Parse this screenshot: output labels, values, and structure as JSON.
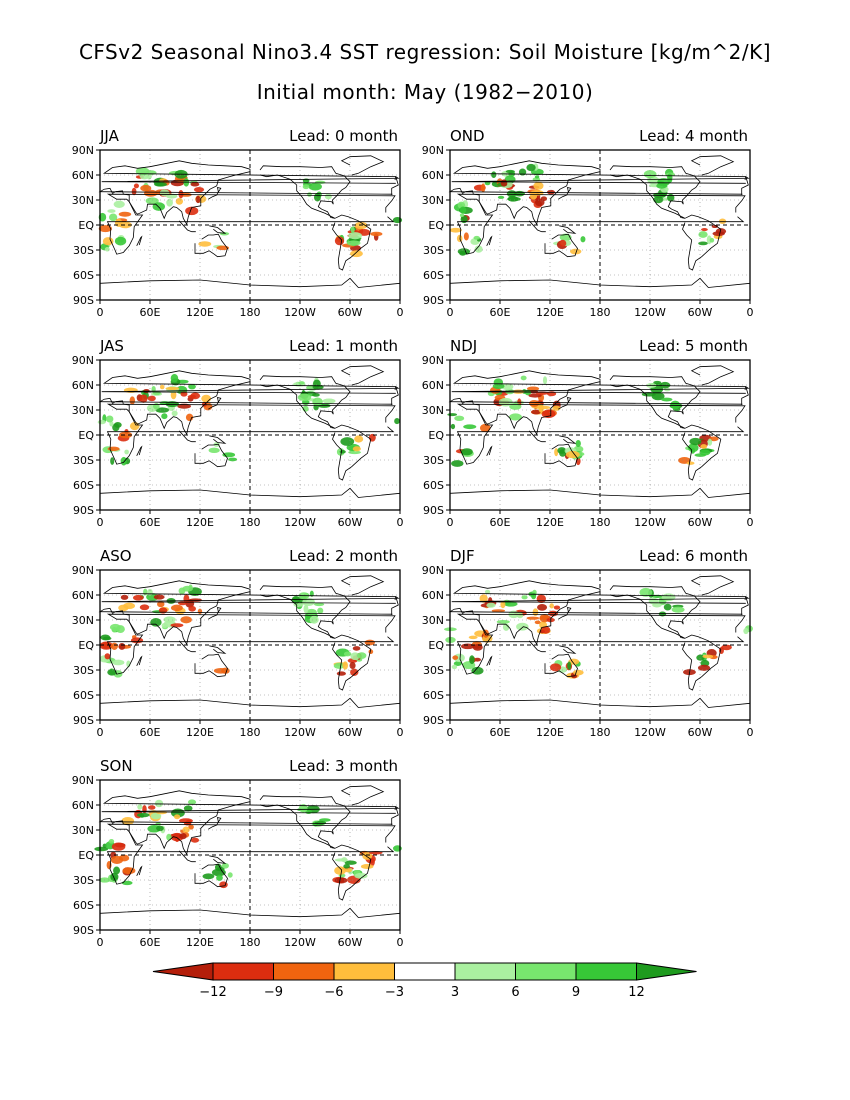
{
  "title": {
    "line1": "CFSv2 Seasonal Nino3.4 SST regression: Soil Moisture [kg/m^2/K]",
    "line2": "Initial month: May (1982−2010)"
  },
  "lat_ticks": [
    "90N",
    "60N",
    "30N",
    "EQ",
    "30S",
    "60S",
    "90S"
  ],
  "lon_ticks": [
    "0",
    "60E",
    "120E",
    "180",
    "120W",
    "60W",
    "0"
  ],
  "panels": [
    {
      "season": "JJA",
      "lead": "Lead: 0 month"
    },
    {
      "season": "JAS",
      "lead": "Lead: 1 month"
    },
    {
      "season": "ASO",
      "lead": "Lead: 2 month"
    },
    {
      "season": "SON",
      "lead": "Lead: 3 month"
    },
    {
      "season": "OND",
      "lead": "Lead: 4 month"
    },
    {
      "season": "NDJ",
      "lead": "Lead: 5 month"
    },
    {
      "season": "DJF",
      "lead": "Lead: 6 month"
    }
  ],
  "colorbar": {
    "labels": [
      "−12",
      "−9",
      "−6",
      "−3",
      "3",
      "6",
      "9",
      "12"
    ],
    "colors": [
      "#b41e0a",
      "#dc2d0f",
      "#f0640f",
      "#ffbe3c",
      "#ffffff",
      "#aaf0a0",
      "#78e66e",
      "#37c837",
      "#1e9b1e"
    ]
  },
  "chart_data": {
    "type": "heatmap",
    "map_panels": 7,
    "lat_range": [
      -90,
      90
    ],
    "lon_range": [
      0,
      360
    ],
    "levels": [
      -12,
      -9,
      -6,
      -3,
      3,
      6,
      9,
      12
    ],
    "units": "kg/m^2/K"
  }
}
